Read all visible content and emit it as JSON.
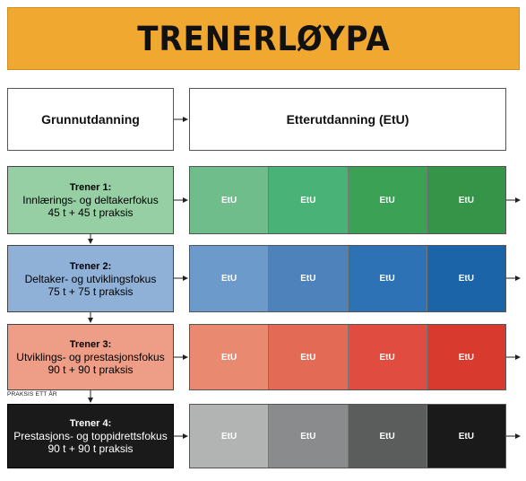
{
  "title": "TRENERLØYPA",
  "headers": {
    "base": "Grunnutdanning",
    "further": "Etterutdanning (EtU)"
  },
  "note": "PRAKSIS ETT ÅR",
  "levels": [
    {
      "title": "Trener 1:",
      "focus": "Innlærings- og deltakerfokus",
      "hours": "45 t + 45 t praksis",
      "color": "#95cfa3",
      "etu_colors": [
        "#6ebd8b",
        "#49b377",
        "#3aa155",
        "#359448"
      ]
    },
    {
      "title": "Trener 2:",
      "focus": "Deltaker- og utviklingsfokus",
      "hours": "75 t + 75 t praksis",
      "color": "#8fb0d7",
      "etu_colors": [
        "#6c9acb",
        "#4d83ba",
        "#2c72b5",
        "#1c64a8"
      ]
    },
    {
      "title": "Trener 3:",
      "focus": "Utviklings- og prestasjonsfokus",
      "hours": "90 t + 90 t praksis",
      "color": "#ee9e86",
      "etu_colors": [
        "#e98a70",
        "#e36b55",
        "#e14c40",
        "#d93a2e"
      ]
    },
    {
      "title": "Trener 4:",
      "focus": "Prestasjons- og toppidrettsfokus",
      "hours": "90 t + 90 t praksis",
      "color": "#1a1a1a",
      "etu_colors": [
        "#b2b3b3",
        "#8a8b8c",
        "#5b5c5c",
        "#1a1a1a"
      ]
    }
  ],
  "etu_label": "EtU"
}
